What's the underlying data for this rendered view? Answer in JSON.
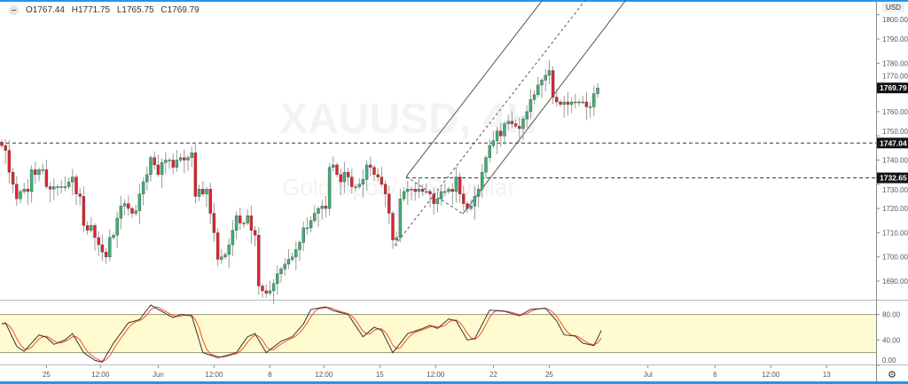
{
  "legend": {
    "open": "O1767.44",
    "high": "H1771.75",
    "low": "L1765.75",
    "close": "C1769.79"
  },
  "watermark": {
    "symbol": "XAUUSD, 4H",
    "description": "Gold Spot / U.S. Dollar"
  },
  "currency_label": "USD",
  "colors": {
    "up": "#3bb273",
    "down": "#e4222b",
    "stoch_k": "#333333",
    "stoch_d": "#ff4b26",
    "band": "#fffbd0",
    "accent": "#2196f3"
  },
  "price_axis": {
    "ticks": [
      "1800.00",
      "1790.00",
      "1780.00",
      "1770.00",
      "1760.00",
      "1750.00",
      "1740.00",
      "1730.00",
      "1720.00",
      "1710.00",
      "1700.00",
      "1690.00"
    ],
    "tick_values": [
      1800,
      1790,
      1780,
      1770,
      1760,
      1750,
      1740,
      1730,
      1720,
      1710,
      1700,
      1690
    ]
  },
  "price_labels": [
    {
      "value": 1769.79,
      "text": "1769.79"
    },
    {
      "value": 1747.04,
      "text": "1747.04"
    },
    {
      "value": 1732.65,
      "text": "1732.65"
    }
  ],
  "osc_axis": {
    "ticks": [
      "80.00",
      "40.00",
      "0.00"
    ],
    "tick_values": [
      80,
      40,
      0
    ],
    "band": [
      20,
      80
    ]
  },
  "time_axis": {
    "labels": [
      "25",
      "12:00",
      "Jun",
      "12:00",
      "8",
      "12:00",
      "15",
      "12:00",
      "22",
      "25",
      "Jul",
      "6",
      "12:00",
      "13"
    ],
    "bar_positions": [
      12,
      26.5,
      42,
      57,
      72,
      86.5,
      101.5,
      116.5,
      132,
      147,
      173.5,
      191.5,
      206.5,
      221.5
    ]
  },
  "chart_data": {
    "type": "candlestick",
    "closes": [
      1746,
      1744,
      1735,
      1730,
      1724,
      1727,
      1728,
      1727,
      1736,
      1734,
      1736,
      1736,
      1729,
      1728,
      1729,
      1729,
      1729,
      1729,
      1731,
      1733,
      1726,
      1725,
      1713,
      1711,
      1713,
      1708,
      1705,
      1702,
      1700,
      1708,
      1709,
      1716,
      1721,
      1722,
      1720,
      1718,
      1719,
      1726,
      1731,
      1734,
      1741,
      1738,
      1734,
      1739,
      1740,
      1740,
      1737,
      1740,
      1741,
      1740,
      1741,
      1743,
      1725,
      1728,
      1726,
      1728,
      1718,
      1710,
      1699,
      1700,
      1701,
      1705,
      1711,
      1717,
      1714,
      1714,
      1717,
      1711,
      1709,
      1688,
      1686,
      1685,
      1686,
      1689,
      1693,
      1695,
      1697,
      1699,
      1700,
      1703,
      1706,
      1712,
      1712,
      1715,
      1718,
      1720,
      1721,
      1720,
      1737,
      1738,
      1734,
      1731,
      1735,
      1733,
      1729,
      1729,
      1730,
      1732,
      1738,
      1737,
      1734,
      1733,
      1730,
      1726,
      1718,
      1707,
      1708,
      1724,
      1727,
      1728,
      1728,
      1727,
      1728,
      1727,
      1727,
      1726,
      1722,
      1724,
      1727,
      1727,
      1728,
      1727,
      1733,
      1726,
      1722,
      1720,
      1721,
      1725,
      1728,
      1735,
      1741,
      1746,
      1748,
      1752,
      1750,
      1755,
      1756,
      1755,
      1754,
      1753,
      1757,
      1760,
      1765,
      1767,
      1771,
      1773,
      1775,
      1777,
      1766,
      1764,
      1763,
      1764,
      1763,
      1764,
      1764,
      1764,
      1764,
      1762,
      1762,
      1767.44,
      1769.79
    ],
    "first_open": 1747.44,
    "last_bar": {
      "open": 1767.44,
      "high": 1771.75,
      "low": 1765.75,
      "close": 1769.79
    },
    "ylim": [
      1683,
      1806
    ],
    "horizontal_lines": [
      1747.04,
      1732.65
    ],
    "channel": {
      "upper": [
        [
          108.6,
          1733.2
        ],
        [
          145.2,
          1806.1
        ]
      ],
      "lower": [
        [
          123.8,
          1717.8
        ],
        [
          167.6,
          1806.1
        ]
      ],
      "middle_dashed": [
        [
          105.5,
          1704.7
        ],
        [
          156.7,
          1806.1
        ]
      ],
      "connector_dashed": [
        [
          108.6,
          1733.2
        ],
        [
          123.8,
          1717.8
        ]
      ]
    },
    "stochastic_k": [
      [
        0,
        65
      ],
      [
        1,
        67
      ],
      [
        4,
        30
      ],
      [
        6,
        22
      ],
      [
        10,
        48
      ],
      [
        12,
        44
      ],
      [
        14,
        33
      ],
      [
        17,
        40
      ],
      [
        19,
        50
      ],
      [
        22,
        20
      ],
      [
        25,
        8
      ],
      [
        27,
        5
      ],
      [
        30,
        35
      ],
      [
        34,
        67
      ],
      [
        37,
        72
      ],
      [
        40,
        95
      ],
      [
        42,
        88
      ],
      [
        46,
        75
      ],
      [
        48,
        80
      ],
      [
        51,
        78
      ],
      [
        54,
        20
      ],
      [
        58,
        12
      ],
      [
        63,
        20
      ],
      [
        66,
        45
      ],
      [
        68,
        50
      ],
      [
        71,
        20
      ],
      [
        75,
        38
      ],
      [
        78,
        45
      ],
      [
        81,
        65
      ],
      [
        83,
        88
      ],
      [
        87,
        92
      ],
      [
        89,
        86
      ],
      [
        93,
        80
      ],
      [
        97,
        45
      ],
      [
        100,
        60
      ],
      [
        102,
        55
      ],
      [
        105,
        20
      ],
      [
        109,
        50
      ],
      [
        113,
        58
      ],
      [
        115,
        63
      ],
      [
        117,
        58
      ],
      [
        120,
        73
      ],
      [
        122,
        70
      ],
      [
        125,
        40
      ],
      [
        127,
        42
      ],
      [
        131,
        87
      ],
      [
        135,
        85
      ],
      [
        139,
        78
      ],
      [
        142,
        88
      ],
      [
        146,
        90
      ],
      [
        149,
        70
      ],
      [
        151,
        48
      ],
      [
        154,
        46
      ],
      [
        156,
        35
      ],
      [
        159,
        31
      ],
      [
        161,
        55
      ]
    ]
  }
}
